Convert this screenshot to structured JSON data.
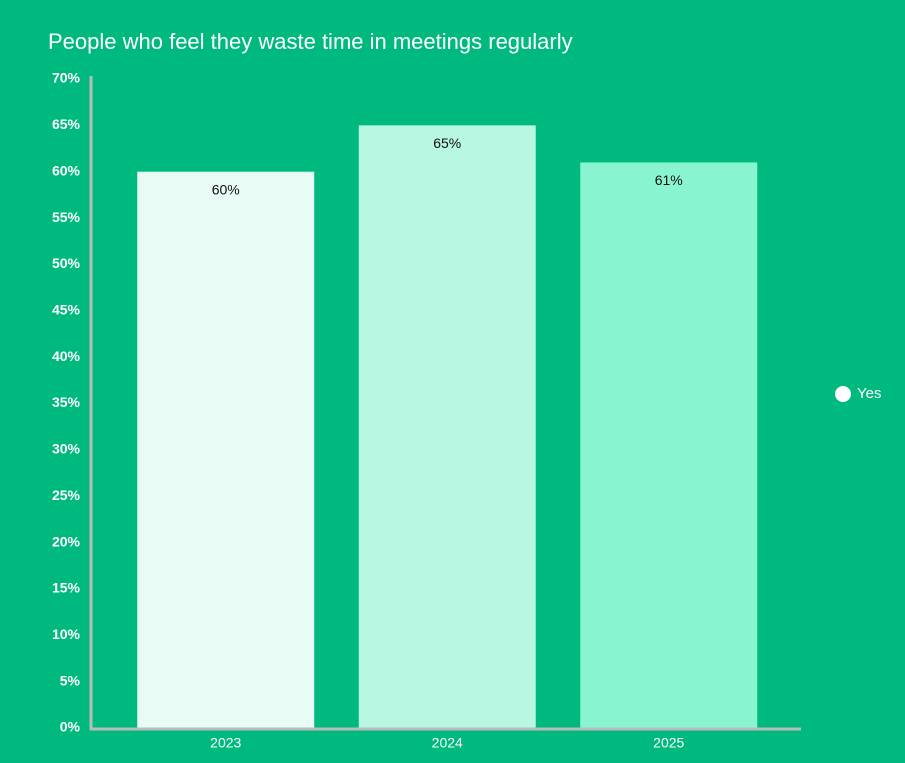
{
  "chart_data": {
    "type": "bar",
    "title": "People who feel they waste time in meetings regularly",
    "categories": [
      "2023",
      "2024",
      "2025"
    ],
    "series": [
      {
        "name": "Yes",
        "color": "#ffffff",
        "colors": [
          "#e8fcf5",
          "#b8f7e1",
          "#88f5d0"
        ],
        "values": [
          60,
          65,
          61
        ],
        "value_labels": [
          "60%",
          "65%",
          "61%"
        ]
      }
    ],
    "ylim": [
      0,
      70
    ],
    "yticks": [
      {
        "value": 0,
        "label": "0%"
      },
      {
        "value": 5,
        "label": "5%"
      },
      {
        "value": 10,
        "label": "10%"
      },
      {
        "value": 15,
        "label": "15%"
      },
      {
        "value": 20,
        "label": "20%"
      },
      {
        "value": 25,
        "label": "25%"
      },
      {
        "value": 30,
        "label": "30%"
      },
      {
        "value": 35,
        "label": "35%"
      },
      {
        "value": 40,
        "label": "40%"
      },
      {
        "value": 45,
        "label": "45%"
      },
      {
        "value": 50,
        "label": "50%"
      },
      {
        "value": 55,
        "label": "55%"
      },
      {
        "value": 60,
        "label": "60%"
      },
      {
        "value": 65,
        "label": "65%"
      },
      {
        "value": 70,
        "label": "70%"
      }
    ],
    "grid": false,
    "legend": "right"
  }
}
